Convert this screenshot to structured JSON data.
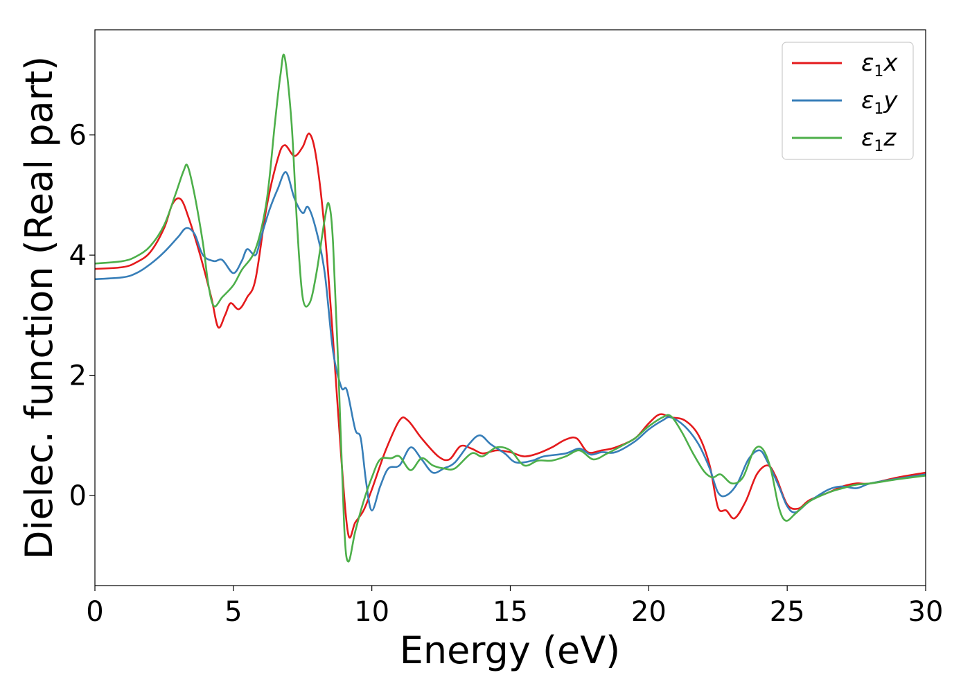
{
  "chart_data": {
    "type": "line",
    "xlabel": "Energy (eV)",
    "ylabel": "Dielec. function (Real part)",
    "xlim": [
      0,
      30
    ],
    "ylim": [
      -1.5,
      7.75
    ],
    "xticks": [
      0,
      5,
      10,
      15,
      20,
      25,
      30
    ],
    "xtick_labels": [
      "0",
      "5",
      "10",
      "15",
      "20",
      "25",
      "30"
    ],
    "yticks": [
      0,
      2,
      4,
      6
    ],
    "ytick_labels": [
      "0",
      "2",
      "4",
      "6"
    ],
    "grid": false,
    "legend_position": "top-right",
    "series": [
      {
        "name": "ε1x",
        "legend_main": "ε",
        "legend_sub": "1",
        "legend_var": "x",
        "color": "#e41a1c",
        "points": [
          [
            0,
            3.77
          ],
          [
            1,
            3.8
          ],
          [
            1.5,
            3.88
          ],
          [
            2,
            4.05
          ],
          [
            2.5,
            4.45
          ],
          [
            2.8,
            4.85
          ],
          [
            3.1,
            4.93
          ],
          [
            3.4,
            4.6
          ],
          [
            3.8,
            4.0
          ],
          [
            4.2,
            3.3
          ],
          [
            4.45,
            2.8
          ],
          [
            4.7,
            3.0
          ],
          [
            4.9,
            3.2
          ],
          [
            5.2,
            3.1
          ],
          [
            5.5,
            3.3
          ],
          [
            5.8,
            3.6
          ],
          [
            6.2,
            4.8
          ],
          [
            6.6,
            5.6
          ],
          [
            6.85,
            5.83
          ],
          [
            7.2,
            5.65
          ],
          [
            7.5,
            5.8
          ],
          [
            7.75,
            6.02
          ],
          [
            8.0,
            5.6
          ],
          [
            8.3,
            4.4
          ],
          [
            8.6,
            2.6
          ],
          [
            8.9,
            0.6
          ],
          [
            9.15,
            -0.65
          ],
          [
            9.4,
            -0.45
          ],
          [
            9.7,
            -0.25
          ],
          [
            10.0,
            0.1
          ],
          [
            10.5,
            0.75
          ],
          [
            11.0,
            1.25
          ],
          [
            11.3,
            1.25
          ],
          [
            11.8,
            0.95
          ],
          [
            12.4,
            0.65
          ],
          [
            12.8,
            0.6
          ],
          [
            13.2,
            0.82
          ],
          [
            13.6,
            0.78
          ],
          [
            14.0,
            0.7
          ],
          [
            14.5,
            0.75
          ],
          [
            15.0,
            0.72
          ],
          [
            15.5,
            0.65
          ],
          [
            16.0,
            0.7
          ],
          [
            16.5,
            0.8
          ],
          [
            17.0,
            0.93
          ],
          [
            17.4,
            0.95
          ],
          [
            17.8,
            0.72
          ],
          [
            18.3,
            0.75
          ],
          [
            18.8,
            0.8
          ],
          [
            19.5,
            0.95
          ],
          [
            20.0,
            1.2
          ],
          [
            20.4,
            1.35
          ],
          [
            20.8,
            1.3
          ],
          [
            21.3,
            1.25
          ],
          [
            21.8,
            1.0
          ],
          [
            22.2,
            0.5
          ],
          [
            22.5,
            -0.2
          ],
          [
            22.8,
            -0.25
          ],
          [
            23.1,
            -0.38
          ],
          [
            23.5,
            -0.1
          ],
          [
            23.9,
            0.35
          ],
          [
            24.3,
            0.5
          ],
          [
            24.6,
            0.3
          ],
          [
            25.0,
            -0.15
          ],
          [
            25.4,
            -0.22
          ],
          [
            25.8,
            -0.08
          ],
          [
            26.5,
            0.05
          ],
          [
            27.0,
            0.15
          ],
          [
            27.5,
            0.2
          ],
          [
            28.0,
            0.2
          ],
          [
            29.0,
            0.3
          ],
          [
            30.0,
            0.38
          ]
        ]
      },
      {
        "name": "ε1y",
        "legend_main": "ε",
        "legend_sub": "1",
        "legend_var": "y",
        "color": "#377eb8",
        "points": [
          [
            0,
            3.6
          ],
          [
            1,
            3.63
          ],
          [
            1.5,
            3.7
          ],
          [
            2,
            3.85
          ],
          [
            2.5,
            4.05
          ],
          [
            3.0,
            4.3
          ],
          [
            3.3,
            4.45
          ],
          [
            3.6,
            4.35
          ],
          [
            3.9,
            4.0
          ],
          [
            4.3,
            3.9
          ],
          [
            4.6,
            3.92
          ],
          [
            5.0,
            3.7
          ],
          [
            5.3,
            3.9
          ],
          [
            5.5,
            4.1
          ],
          [
            5.8,
            4.0
          ],
          [
            6.0,
            4.3
          ],
          [
            6.3,
            4.75
          ],
          [
            6.6,
            5.1
          ],
          [
            6.9,
            5.38
          ],
          [
            7.2,
            4.95
          ],
          [
            7.5,
            4.7
          ],
          [
            7.7,
            4.8
          ],
          [
            8.0,
            4.4
          ],
          [
            8.3,
            3.7
          ],
          [
            8.6,
            2.4
          ],
          [
            8.9,
            1.8
          ],
          [
            9.1,
            1.75
          ],
          [
            9.4,
            1.1
          ],
          [
            9.6,
            0.95
          ],
          [
            9.8,
            0.2
          ],
          [
            10.0,
            -0.25
          ],
          [
            10.3,
            0.15
          ],
          [
            10.6,
            0.45
          ],
          [
            11.0,
            0.5
          ],
          [
            11.4,
            0.8
          ],
          [
            11.8,
            0.6
          ],
          [
            12.2,
            0.38
          ],
          [
            12.6,
            0.45
          ],
          [
            13.0,
            0.55
          ],
          [
            13.5,
            0.85
          ],
          [
            13.9,
            1.0
          ],
          [
            14.3,
            0.85
          ],
          [
            14.8,
            0.7
          ],
          [
            15.2,
            0.55
          ],
          [
            15.8,
            0.58
          ],
          [
            16.2,
            0.65
          ],
          [
            17.0,
            0.7
          ],
          [
            17.5,
            0.78
          ],
          [
            17.9,
            0.68
          ],
          [
            18.3,
            0.72
          ],
          [
            18.8,
            0.72
          ],
          [
            19.5,
            0.9
          ],
          [
            20.0,
            1.1
          ],
          [
            20.5,
            1.25
          ],
          [
            20.8,
            1.3
          ],
          [
            21.3,
            1.15
          ],
          [
            21.8,
            0.85
          ],
          [
            22.2,
            0.45
          ],
          [
            22.5,
            0.05
          ],
          [
            22.8,
            0.0
          ],
          [
            23.2,
            0.2
          ],
          [
            23.6,
            0.6
          ],
          [
            24.0,
            0.75
          ],
          [
            24.3,
            0.55
          ],
          [
            24.7,
            0.15
          ],
          [
            25.0,
            -0.18
          ],
          [
            25.3,
            -0.28
          ],
          [
            25.8,
            -0.1
          ],
          [
            26.5,
            0.1
          ],
          [
            27.0,
            0.15
          ],
          [
            27.5,
            0.12
          ],
          [
            28.0,
            0.2
          ],
          [
            29.0,
            0.28
          ],
          [
            30.0,
            0.35
          ]
        ]
      },
      {
        "name": "ε1z",
        "legend_main": "ε",
        "legend_sub": "1",
        "legend_var": "z",
        "color": "#4daf4a",
        "points": [
          [
            0,
            3.86
          ],
          [
            1,
            3.9
          ],
          [
            1.5,
            3.98
          ],
          [
            2,
            4.15
          ],
          [
            2.5,
            4.5
          ],
          [
            2.9,
            5.0
          ],
          [
            3.2,
            5.4
          ],
          [
            3.35,
            5.48
          ],
          [
            3.6,
            5.0
          ],
          [
            3.9,
            4.2
          ],
          [
            4.1,
            3.5
          ],
          [
            4.3,
            3.15
          ],
          [
            4.6,
            3.3
          ],
          [
            5.0,
            3.5
          ],
          [
            5.3,
            3.75
          ],
          [
            5.8,
            4.1
          ],
          [
            6.2,
            4.9
          ],
          [
            6.5,
            6.2
          ],
          [
            6.7,
            7.0
          ],
          [
            6.85,
            7.3
          ],
          [
            7.1,
            6.2
          ],
          [
            7.3,
            4.5
          ],
          [
            7.5,
            3.3
          ],
          [
            7.75,
            3.2
          ],
          [
            8.0,
            3.7
          ],
          [
            8.3,
            4.6
          ],
          [
            8.45,
            4.85
          ],
          [
            8.6,
            4.2
          ],
          [
            8.8,
            2.0
          ],
          [
            9.0,
            -0.5
          ],
          [
            9.15,
            -1.1
          ],
          [
            9.4,
            -0.6
          ],
          [
            9.7,
            -0.1
          ],
          [
            10.0,
            0.3
          ],
          [
            10.3,
            0.6
          ],
          [
            10.7,
            0.62
          ],
          [
            11.0,
            0.65
          ],
          [
            11.4,
            0.42
          ],
          [
            11.8,
            0.62
          ],
          [
            12.2,
            0.5
          ],
          [
            12.6,
            0.45
          ],
          [
            13.0,
            0.45
          ],
          [
            13.6,
            0.7
          ],
          [
            14.0,
            0.65
          ],
          [
            14.5,
            0.8
          ],
          [
            15.0,
            0.75
          ],
          [
            15.5,
            0.5
          ],
          [
            16.0,
            0.58
          ],
          [
            16.5,
            0.58
          ],
          [
            17.0,
            0.65
          ],
          [
            17.5,
            0.75
          ],
          [
            18.0,
            0.6
          ],
          [
            18.5,
            0.7
          ],
          [
            19.0,
            0.82
          ],
          [
            19.5,
            0.95
          ],
          [
            20.0,
            1.15
          ],
          [
            20.5,
            1.3
          ],
          [
            20.8,
            1.32
          ],
          [
            21.2,
            1.05
          ],
          [
            21.6,
            0.7
          ],
          [
            22.0,
            0.4
          ],
          [
            22.3,
            0.3
          ],
          [
            22.6,
            0.35
          ],
          [
            23.0,
            0.2
          ],
          [
            23.4,
            0.3
          ],
          [
            23.8,
            0.75
          ],
          [
            24.1,
            0.78
          ],
          [
            24.4,
            0.45
          ],
          [
            24.7,
            -0.2
          ],
          [
            24.95,
            -0.42
          ],
          [
            25.3,
            -0.3
          ],
          [
            25.8,
            -0.1
          ],
          [
            26.5,
            0.05
          ],
          [
            27.0,
            0.12
          ],
          [
            27.5,
            0.18
          ],
          [
            28.0,
            0.2
          ],
          [
            29.0,
            0.27
          ],
          [
            30.0,
            0.33
          ]
        ]
      }
    ]
  }
}
